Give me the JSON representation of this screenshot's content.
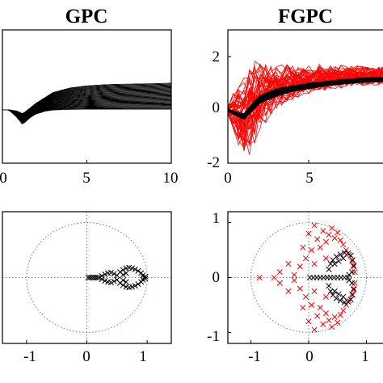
{
  "chart_data": [
    {
      "type": "line",
      "title": "GPC",
      "xlabel": "",
      "ylabel": "",
      "xlim": [
        0,
        10
      ],
      "ylim": [
        -2,
        3
      ],
      "x_ticks": [
        "0",
        "5",
        "10"
      ],
      "y_ticks": [],
      "series": [
        {
          "color": "#000000",
          "curve_count": 30,
          "x": [
            0.0,
            0.4,
            0.9,
            1.2,
            1.6,
            2.0,
            2.5,
            3.0,
            4.0,
            5.0,
            6.0,
            7.0,
            8.0,
            9.0,
            10.0
          ],
          "y_upper": [
            0.0,
            0.0,
            -0.05,
            -0.15,
            0.05,
            0.25,
            0.45,
            0.65,
            0.82,
            0.9,
            0.94,
            0.96,
            0.97,
            0.98,
            1.0
          ],
          "y_lower": [
            0.0,
            0.0,
            -0.3,
            -0.55,
            -0.3,
            -0.15,
            -0.05,
            0.0,
            0.02,
            0.03,
            0.03,
            0.03,
            0.03,
            0.03,
            0.03
          ]
        }
      ]
    },
    {
      "type": "line",
      "title": "FGPC",
      "xlabel": "",
      "ylabel": "",
      "xlim": [
        0,
        10
      ],
      "ylim": [
        -2,
        3
      ],
      "x_ticks": [
        "0",
        "5"
      ],
      "y_ticks": [
        "-2",
        "0",
        "2"
      ],
      "series": [
        {
          "color": "#ff0000",
          "curve_count": 50,
          "x": [
            0.0,
            0.5,
            1.0,
            1.5,
            2.0,
            3.0,
            4.0,
            5.0,
            6.0,
            7.0,
            8.0,
            9.0,
            10.0
          ],
          "y_center": [
            0.0,
            -0.1,
            -0.3,
            0.2,
            0.6,
            0.9,
            1.05,
            1.15,
            1.2,
            1.25,
            1.28,
            1.3,
            1.32
          ],
          "y_spread": [
            0.15,
            0.8,
            1.2,
            1.5,
            1.1,
            0.7,
            0.55,
            0.45,
            0.4,
            0.35,
            0.3,
            0.3,
            0.3
          ]
        },
        {
          "color": "#000000",
          "curve_count": 40,
          "x": [
            0.0,
            0.5,
            1.0,
            1.5,
            2.0,
            3.0,
            4.0,
            5.0,
            6.0,
            7.0,
            8.0,
            9.0,
            10.0
          ],
          "y_center": [
            0.0,
            -0.15,
            -0.25,
            0.1,
            0.4,
            0.65,
            0.8,
            0.9,
            0.98,
            1.05,
            1.1,
            1.13,
            1.15
          ],
          "y_spread": [
            0.05,
            0.1,
            0.15,
            0.2,
            0.2,
            0.2,
            0.15,
            0.15,
            0.12,
            0.12,
            0.12,
            0.12,
            0.12
          ]
        }
      ]
    },
    {
      "type": "scatter",
      "title": "",
      "xlabel": "",
      "ylabel": "",
      "xlim": [
        -1.4,
        1.4
      ],
      "ylim": [
        -1.2,
        1.2
      ],
      "x_ticks": [
        "-1",
        "0",
        "1"
      ],
      "y_ticks": [],
      "unit_circle": true,
      "series": [
        {
          "color": "#000000",
          "marker": "x",
          "points": [
            [
              0.02,
              0.0
            ],
            [
              0.05,
              0.0
            ],
            [
              0.08,
              0.0
            ],
            [
              0.11,
              0.0
            ],
            [
              0.14,
              0.0
            ],
            [
              0.17,
              0.0
            ],
            [
              0.2,
              0.0
            ],
            [
              0.25,
              0.03
            ],
            [
              0.3,
              0.06
            ],
            [
              0.35,
              0.08
            ],
            [
              0.4,
              0.09
            ],
            [
              0.45,
              0.07
            ],
            [
              0.5,
              0.04
            ],
            [
              0.25,
              -0.03
            ],
            [
              0.3,
              -0.06
            ],
            [
              0.35,
              -0.08
            ],
            [
              0.4,
              -0.09
            ],
            [
              0.45,
              -0.07
            ],
            [
              0.5,
              -0.04
            ],
            [
              0.55,
              0.1
            ],
            [
              0.6,
              0.14
            ],
            [
              0.65,
              0.17
            ],
            [
              0.7,
              0.18
            ],
            [
              0.75,
              0.17
            ],
            [
              0.8,
              0.15
            ],
            [
              0.85,
              0.12
            ],
            [
              0.9,
              0.08
            ],
            [
              0.93,
              0.04
            ],
            [
              0.95,
              0.0
            ],
            [
              0.55,
              -0.1
            ],
            [
              0.6,
              -0.14
            ],
            [
              0.65,
              -0.17
            ],
            [
              0.7,
              -0.18
            ],
            [
              0.75,
              -0.17
            ],
            [
              0.8,
              -0.15
            ],
            [
              0.85,
              -0.12
            ],
            [
              0.9,
              -0.08
            ],
            [
              0.93,
              -0.04
            ],
            [
              0.6,
              0.05
            ],
            [
              0.65,
              0.08
            ],
            [
              0.6,
              -0.05
            ],
            [
              0.65,
              -0.08
            ],
            [
              0.97,
              0.02
            ],
            [
              0.97,
              -0.02
            ]
          ]
        }
      ]
    },
    {
      "type": "scatter",
      "title": "",
      "xlabel": "",
      "ylabel": "",
      "xlim": [
        -1.4,
        1.4
      ],
      "ylim": [
        -1.2,
        1.2
      ],
      "x_ticks": [
        "-1",
        "0",
        "1"
      ],
      "y_ticks": [
        "-1",
        "0",
        "1"
      ],
      "unit_circle": true,
      "series": [
        {
          "color": "#ff0000",
          "marker": "x",
          "points": [
            [
              -0.85,
              0.0
            ],
            [
              -0.6,
              0.0
            ],
            [
              -0.5,
              0.1
            ],
            [
              -0.5,
              -0.1
            ],
            [
              -0.35,
              0.25
            ],
            [
              -0.35,
              -0.25
            ],
            [
              -0.25,
              0.05
            ],
            [
              -0.25,
              -0.05
            ],
            [
              -0.15,
              0.2
            ],
            [
              -0.15,
              -0.2
            ],
            [
              -0.05,
              0.35
            ],
            [
              -0.05,
              -0.35
            ],
            [
              0.05,
              0.5
            ],
            [
              0.05,
              -0.5
            ],
            [
              0.0,
              0.8
            ],
            [
              0.0,
              -0.8
            ],
            [
              0.1,
              0.95
            ],
            [
              0.1,
              -0.95
            ],
            [
              0.15,
              0.7
            ],
            [
              0.15,
              -0.7
            ],
            [
              0.2,
              0.55
            ],
            [
              0.2,
              -0.55
            ],
            [
              0.25,
              0.85
            ],
            [
              0.25,
              -0.85
            ],
            [
              0.3,
              0.65
            ],
            [
              0.3,
              -0.65
            ],
            [
              0.35,
              0.78
            ],
            [
              0.35,
              -0.78
            ],
            [
              0.4,
              0.9
            ],
            [
              0.4,
              -0.9
            ],
            [
              0.45,
              0.72
            ],
            [
              0.45,
              -0.72
            ],
            [
              0.5,
              0.82
            ],
            [
              0.5,
              -0.82
            ],
            [
              0.55,
              0.68
            ],
            [
              0.55,
              -0.68
            ],
            [
              0.6,
              0.6
            ],
            [
              0.6,
              -0.6
            ],
            [
              0.65,
              0.5
            ],
            [
              0.65,
              -0.5
            ],
            [
              0.7,
              0.42
            ],
            [
              0.7,
              -0.42
            ],
            [
              0.75,
              0.3
            ],
            [
              0.75,
              -0.3
            ],
            [
              0.78,
              0.2
            ],
            [
              0.78,
              -0.2
            ],
            [
              0.8,
              0.1
            ],
            [
              0.8,
              -0.1
            ],
            [
              0.3,
              0.35
            ],
            [
              0.3,
              -0.35
            ],
            [
              0.1,
              0.25
            ],
            [
              0.1,
              -0.25
            ],
            [
              -0.1,
              0.55
            ],
            [
              -0.1,
              -0.55
            ]
          ]
        },
        {
          "color": "#000000",
          "marker": "x",
          "points": [
            [
              0.02,
              0.0
            ],
            [
              0.08,
              0.0
            ],
            [
              0.14,
              0.0
            ],
            [
              0.2,
              0.0
            ],
            [
              0.26,
              0.0
            ],
            [
              0.32,
              0.0
            ],
            [
              0.38,
              0.0
            ],
            [
              0.44,
              0.0
            ],
            [
              0.5,
              0.0
            ],
            [
              0.56,
              0.0
            ],
            [
              0.62,
              0.0
            ],
            [
              0.68,
              0.0
            ],
            [
              0.35,
              0.15
            ],
            [
              0.35,
              -0.15
            ],
            [
              0.38,
              0.25
            ],
            [
              0.38,
              -0.25
            ],
            [
              0.42,
              0.32
            ],
            [
              0.42,
              -0.32
            ],
            [
              0.48,
              0.38
            ],
            [
              0.48,
              -0.38
            ],
            [
              0.55,
              0.42
            ],
            [
              0.55,
              -0.42
            ],
            [
              0.62,
              0.45
            ],
            [
              0.62,
              -0.45
            ],
            [
              0.68,
              0.44
            ],
            [
              0.68,
              -0.44
            ],
            [
              0.73,
              0.4
            ],
            [
              0.73,
              -0.4
            ],
            [
              0.76,
              0.32
            ],
            [
              0.76,
              -0.32
            ],
            [
              0.78,
              0.22
            ],
            [
              0.78,
              -0.22
            ],
            [
              0.75,
              0.1
            ],
            [
              0.75,
              -0.1
            ],
            [
              0.7,
              0.05
            ],
            [
              0.7,
              -0.05
            ],
            [
              0.45,
              0.25
            ],
            [
              0.45,
              -0.25
            ],
            [
              0.52,
              0.3
            ],
            [
              0.52,
              -0.3
            ],
            [
              0.6,
              0.35
            ],
            [
              0.6,
              -0.35
            ]
          ]
        }
      ]
    }
  ]
}
